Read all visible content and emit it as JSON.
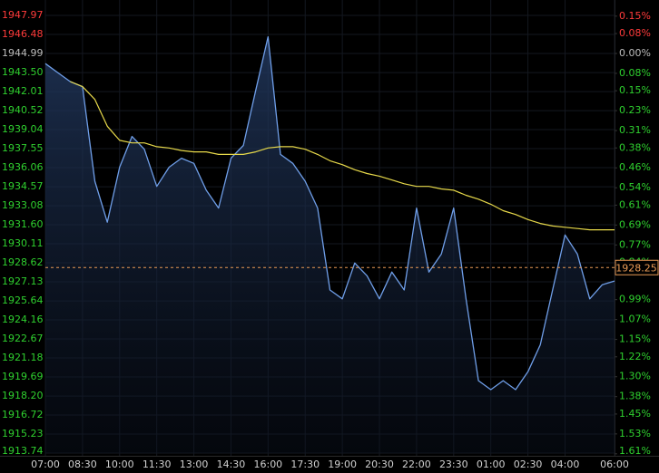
{
  "chart_data": {
    "type": "line",
    "x": [
      "07:00",
      "07:30",
      "08:00",
      "08:30",
      "09:00",
      "09:30",
      "10:00",
      "10:30",
      "11:00",
      "11:30",
      "12:00",
      "12:30",
      "13:00",
      "13:30",
      "14:00",
      "14:30",
      "15:00",
      "15:30",
      "16:00",
      "16:30",
      "17:00",
      "17:30",
      "18:00",
      "18:30",
      "19:00",
      "19:30",
      "20:00",
      "20:30",
      "21:00",
      "21:30",
      "22:00",
      "22:30",
      "23:00",
      "23:30",
      "00:00",
      "00:30",
      "01:00",
      "01:30",
      "02:00",
      "02:30",
      "03:00",
      "03:30",
      "04:00",
      "04:30",
      "05:00",
      "05:30",
      "06:00"
    ],
    "xticks": [
      "07:00",
      "08:30",
      "10:00",
      "11:30",
      "13:00",
      "14:30",
      "16:00",
      "17:30",
      "19:00",
      "20:30",
      "22:00",
      "23:30",
      "01:00",
      "02:30",
      "04:00",
      "06:00"
    ],
    "series": [
      {
        "color": "#6f9ee8",
        "area": true,
        "values": [
          1944.2,
          1943.5,
          1942.8,
          1942.4,
          1935.0,
          1931.8,
          1936.1,
          1938.5,
          1937.5,
          1934.6,
          1936.1,
          1936.8,
          1936.4,
          1934.3,
          1932.9,
          1936.8,
          1937.8,
          1942.1,
          1946.3,
          1937.1,
          1936.4,
          1935.0,
          1932.9,
          1926.5,
          1925.8,
          1928.6,
          1927.6,
          1925.8,
          1927.9,
          1926.5,
          1932.9,
          1927.9,
          1929.3,
          1932.9,
          1925.8,
          1919.4,
          1918.7,
          1919.4,
          1918.7,
          1920.1,
          1922.2,
          1926.5,
          1930.8,
          1929.3,
          1925.8,
          1926.9,
          1927.2
        ]
      },
      {
        "color": "#e6d84a",
        "area": false,
        "values": [
          null,
          null,
          1942.8,
          1942.4,
          1941.4,
          1939.3,
          1938.2,
          1938.0,
          1938.0,
          1937.7,
          1937.6,
          1937.4,
          1937.3,
          1937.3,
          1937.1,
          1937.1,
          1937.1,
          1937.3,
          1937.6,
          1937.7,
          1937.7,
          1937.5,
          1937.1,
          1936.6,
          1936.3,
          1935.9,
          1935.6,
          1935.4,
          1935.1,
          1934.8,
          1934.6,
          1934.6,
          1934.4,
          1934.3,
          1933.9,
          1933.6,
          1933.2,
          1932.7,
          1932.4,
          1932.0,
          1931.7,
          1931.5,
          1931.4,
          1931.3,
          1931.2,
          1931.2,
          1931.2
        ]
      }
    ],
    "ylim": [
      1913.74,
      1947.97
    ],
    "yticks": [
      1947.97,
      1946.48,
      1944.99,
      {
        "value": 1943.5,
        "label": "1943.50"
      },
      1942.01,
      1940.52,
      1939.04,
      1937.55,
      1936.06,
      1934.57,
      1933.08,
      {
        "value": 1931.6,
        "label": "1931.60"
      },
      1930.11,
      1928.62,
      1927.13,
      1925.64,
      1924.16,
      1922.67,
      1921.18,
      1919.69,
      {
        "value": 1918.2,
        "label": "1918.20"
      },
      1916.72,
      1915.23,
      1913.74
    ],
    "y2lim": [
      -1.607,
      0.153
    ],
    "y2ticks": [
      {
        "value": 0.15,
        "label": "0.15%"
      },
      {
        "value": 0.08,
        "label": "0.08%"
      },
      {
        "value": 0,
        "label": "0.00%"
      },
      {
        "value": -0.08,
        "label": "0.08%"
      },
      {
        "value": -0.15,
        "label": "0.15%"
      },
      {
        "value": -0.23,
        "label": "0.23%"
      },
      {
        "value": -0.31,
        "label": "0.31%"
      },
      {
        "value": -0.38,
        "label": "0.38%"
      },
      {
        "value": -0.46,
        "label": "0.46%"
      },
      {
        "value": -0.54,
        "label": "0.54%"
      },
      {
        "value": -0.61,
        "label": "0.61%"
      },
      {
        "value": -0.69,
        "label": "0.69%"
      },
      {
        "value": -0.77,
        "label": "0.77%"
      },
      {
        "value": -0.84,
        "label": "0.84%"
      },
      {
        "value": -0.99,
        "label": "0.99%"
      },
      {
        "value": -1.07,
        "label": "1.07%"
      },
      {
        "value": -1.15,
        "label": "1.15%"
      },
      {
        "value": -1.22,
        "label": "1.22%"
      },
      {
        "value": -1.3,
        "label": "1.30%"
      },
      {
        "value": -1.38,
        "label": "1.38%"
      },
      {
        "value": -1.45,
        "label": "1.45%"
      },
      {
        "value": -1.53,
        "label": "1.53%"
      },
      {
        "value": -1.61,
        "label": "1.61%"
      }
    ],
    "up_color": "#ff3b3b",
    "down_color": "#2fd02f",
    "neutral_color": "#bdbdbd",
    "current_price": 1928.25,
    "current_color": "#e89a55",
    "grid": true
  }
}
